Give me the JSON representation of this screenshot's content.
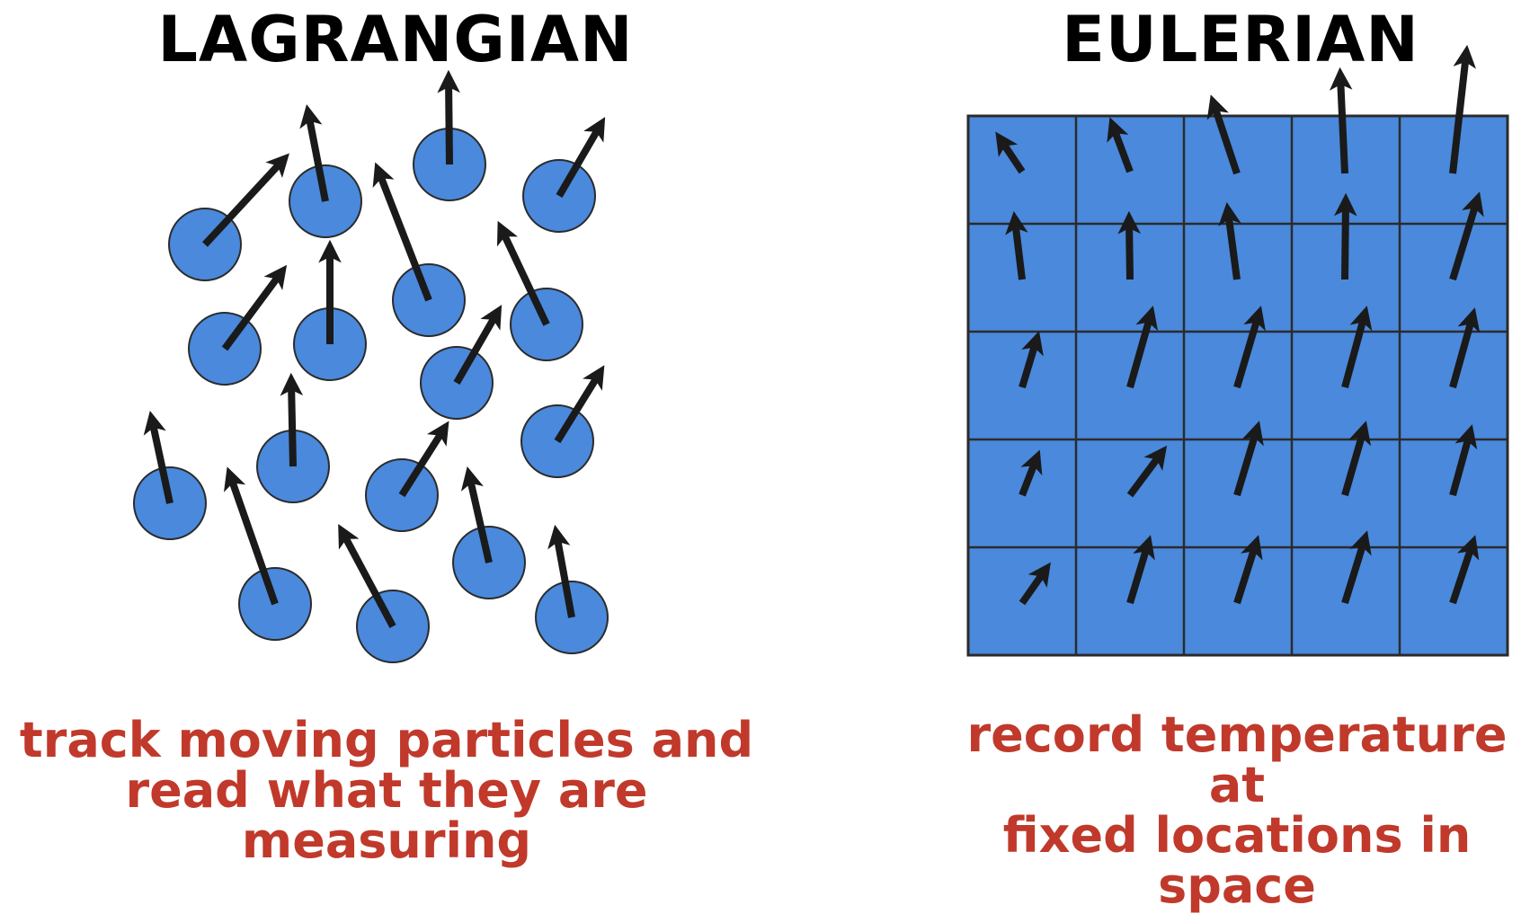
{
  "lagrangian": {
    "title": "LAGRANGIAN",
    "caption_line1": "track moving particles and",
    "caption_line2": "read what they are measuring"
  },
  "eulerian": {
    "title": "EULERIAN",
    "caption_line1": "record temperature at",
    "caption_line2": "fixed locations in space"
  },
  "colors": {
    "particle_fill": "#4a89dc",
    "grid_fill": "#4a89dc",
    "arrow": "#1a1a1a",
    "caption": "#c0392b",
    "title": "#000000"
  }
}
